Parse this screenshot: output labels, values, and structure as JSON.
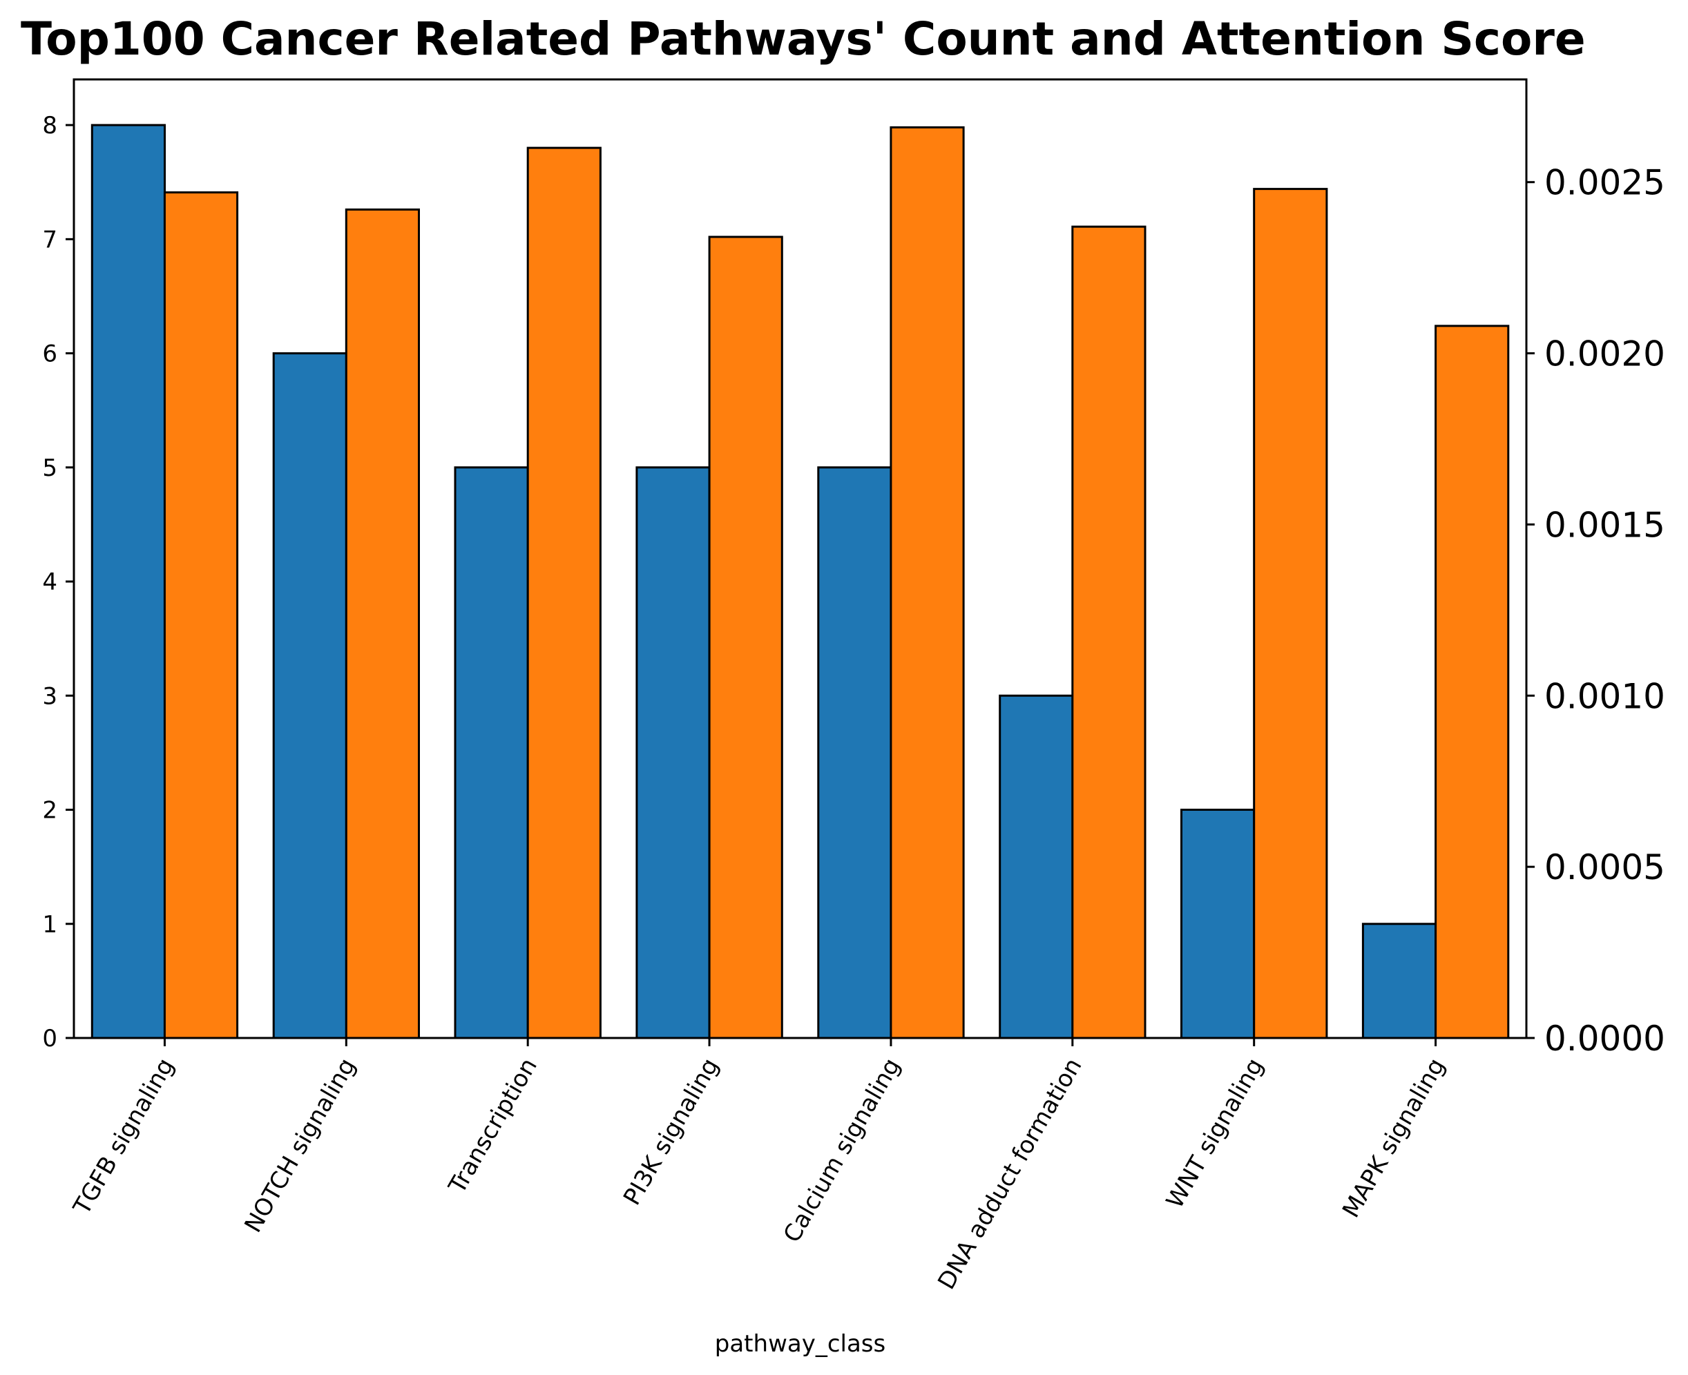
{
  "chart_data": {
    "type": "bar",
    "title": "Top100 Cancer Related Pathways' Count and Attention Score",
    "xlabel": "pathway_class",
    "ylabel": "",
    "y2label": "",
    "categories": [
      "TGFB signaling",
      "NOTCH signaling",
      "Transcription",
      "PI3K signaling",
      "Calcium signaling",
      "DNA adduct formation",
      "WNT signaling",
      "MAPK signaling"
    ],
    "series": [
      {
        "axis": "left",
        "color": "#1f77b4",
        "values": [
          8,
          6,
          5,
          5,
          5,
          3,
          2,
          1
        ]
      },
      {
        "axis": "right",
        "color": "#ff7f0e",
        "values": [
          0.00247,
          0.00242,
          0.0026,
          0.00234,
          0.00266,
          0.00237,
          0.00248,
          0.00208
        ]
      }
    ],
    "ylim": [
      0,
      8.4
    ],
    "y2lim": [
      0,
      0.0028
    ],
    "yticks": [
      "0",
      "1",
      "2",
      "3",
      "4",
      "5",
      "6",
      "7",
      "8"
    ],
    "y2ticks": [
      "0.0000",
      "0.0005",
      "0.0010",
      "0.0015",
      "0.0020",
      "0.0025"
    ],
    "grid": false,
    "xtick_rotation": -60
  }
}
